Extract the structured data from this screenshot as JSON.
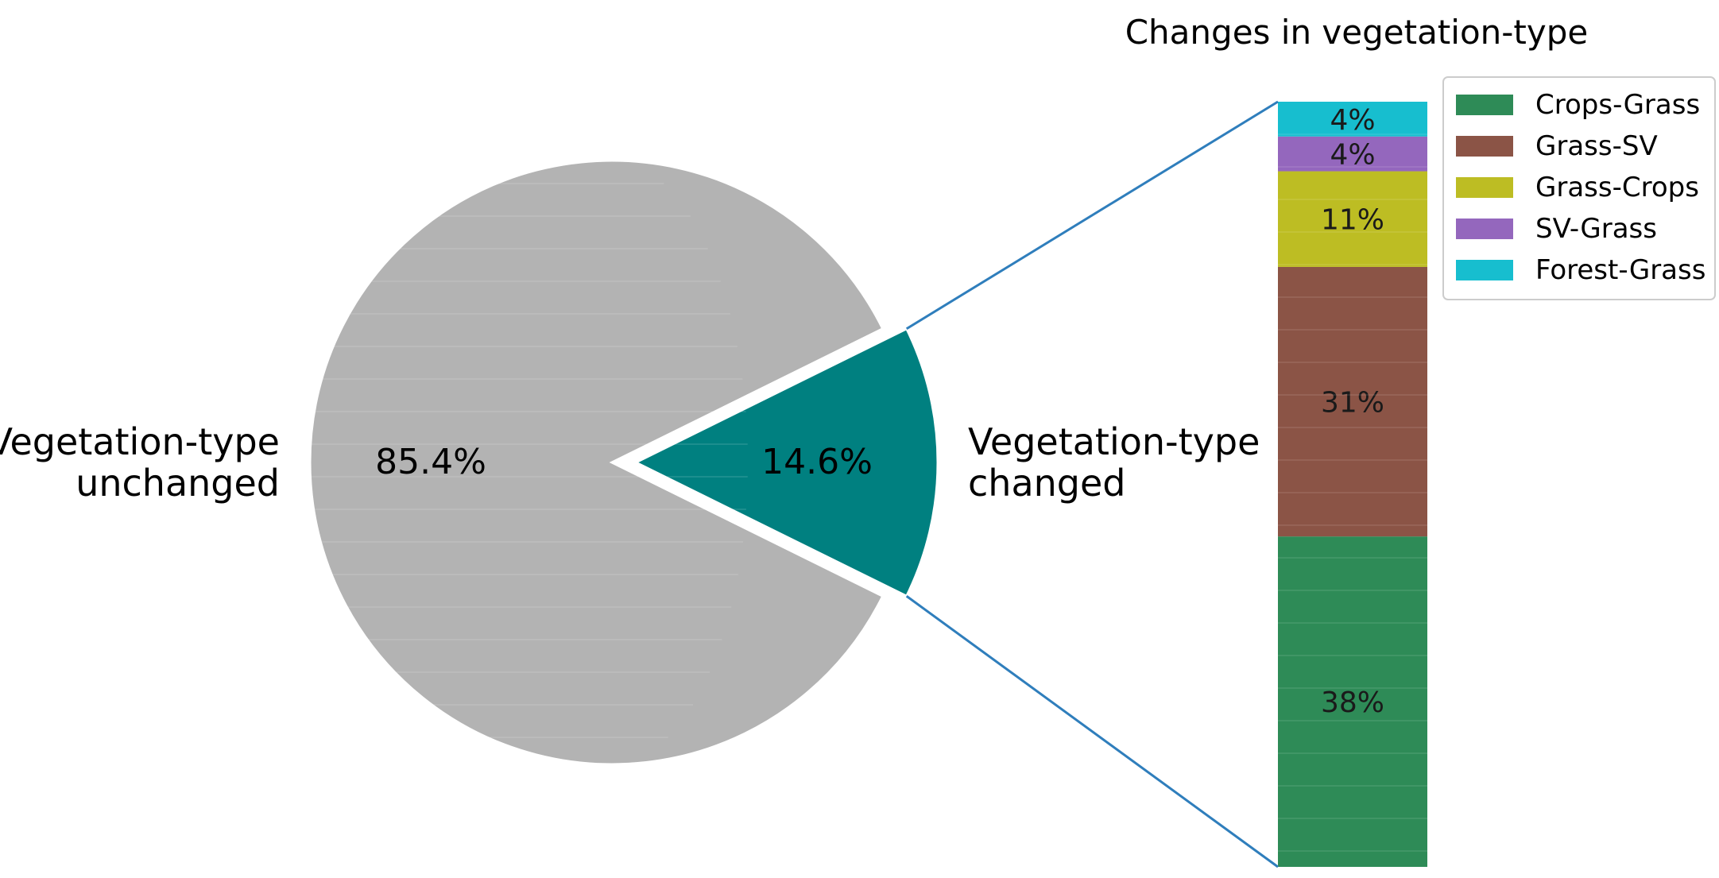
{
  "chart_data": [
    {
      "type": "pie",
      "labels": [
        "Vegetation-type unchanged",
        "Vegetation-type changed"
      ],
      "label_lines": [
        [
          "Vegetation-type",
          "unchanged"
        ],
        [
          "Vegetation-type",
          "changed"
        ]
      ],
      "values": [
        85.4,
        14.6
      ],
      "value_labels": [
        "85.4%",
        "14.6%"
      ],
      "colors": [
        "#b3b3b3",
        "#008080"
      ],
      "exploded": [
        false,
        true
      ]
    },
    {
      "type": "bar",
      "stacked": true,
      "title": "Changes in vegetation-type",
      "categories": [
        "Crops-Grass",
        "Grass-SV",
        "Grass-Crops",
        "SV-Grass",
        "Forest-Grass"
      ],
      "values": [
        38,
        31,
        11,
        4,
        4
      ],
      "value_labels": [
        "38%",
        "31%",
        "11%",
        "4%",
        "4%"
      ],
      "colors": [
        "#2e8b57",
        "#8b5446",
        "#bdbd23",
        "#9467bd",
        "#17becf"
      ],
      "legend": {
        "position": "top-right",
        "entries": [
          "Crops-Grass",
          "Grass-SV",
          "Grass-Crops",
          "SV-Grass",
          "Forest-Grass"
        ]
      },
      "connector_color": "#2f7ebc"
    }
  ]
}
